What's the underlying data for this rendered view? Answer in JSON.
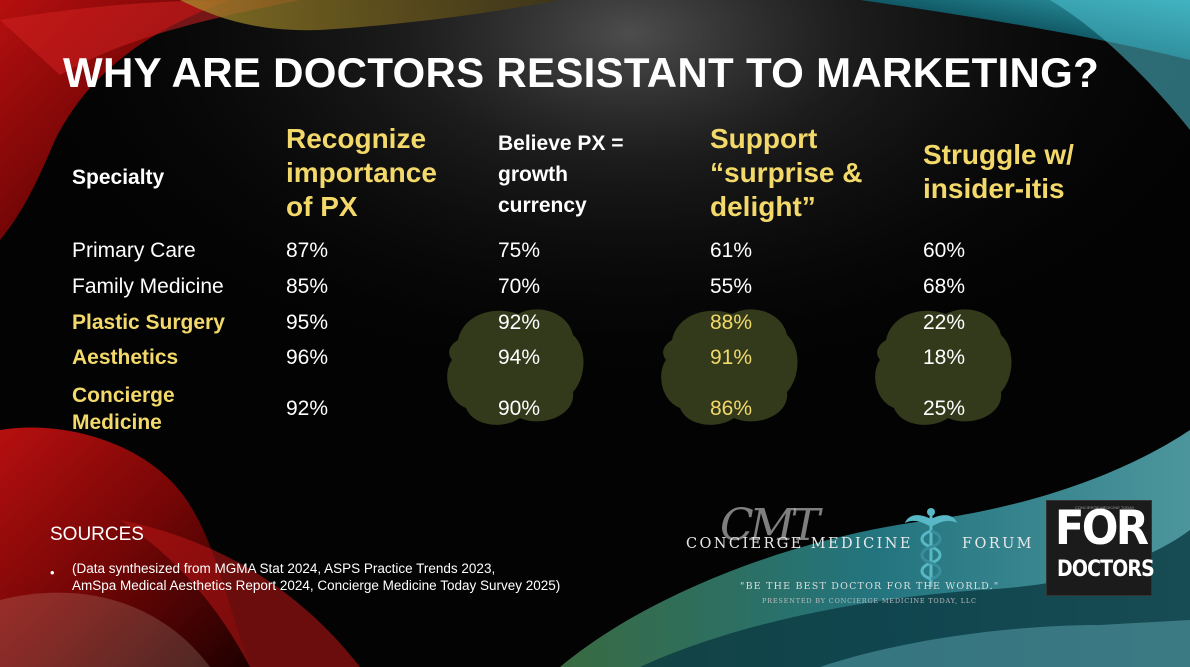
{
  "slide": {
    "title": "WHY ARE DOCTORS RESISTANT TO MARKETING?",
    "colors": {
      "background": "#030303",
      "accent_gold": "#f3d86a",
      "text": "#ffffff",
      "blob_olive": "#3b4420"
    }
  },
  "table": {
    "header_specialty": "Specialty",
    "col1": [
      "Recognize",
      "importance",
      "of PX"
    ],
    "col2": [
      "Believe PX =",
      "growth",
      "currency"
    ],
    "col3": [
      "Support",
      "“surprise &",
      "delight”"
    ],
    "col4": [
      "Struggle w/",
      "insider-itis"
    ],
    "rows": [
      {
        "specialty": [
          "Primary Care"
        ],
        "recognize": "87%",
        "believe": "75%",
        "support": "61%",
        "struggle": "60%"
      },
      {
        "specialty": [
          "Family Medicine"
        ],
        "recognize": "85%",
        "believe": "70%",
        "support": "55%",
        "struggle": "68%"
      },
      {
        "specialty": [
          "Plastic Surgery"
        ],
        "recognize": "95%",
        "believe": "92%",
        "support": "88%",
        "struggle": "22%"
      },
      {
        "specialty": [
          "Aesthetics"
        ],
        "recognize": "96%",
        "believe": "94%",
        "support": "91%",
        "struggle": "18%"
      },
      {
        "specialty": [
          "Concierge",
          "Medicine"
        ],
        "recognize": "92%",
        "believe": "90%",
        "support": "86%",
        "struggle": "25%"
      }
    ]
  },
  "sources": {
    "title": "SOURCES",
    "bullet": "•",
    "lines": [
      "(Data synthesized from MGMA Stat 2024, ASPS Practice Trends 2023,",
      "AmSpa Medical Aesthetics Report 2024, Concierge Medicine Today Survey 2025)"
    ]
  },
  "logos": {
    "forum_monogram": "CMT",
    "forum_name": "CONCIERGE MEDICINE",
    "forum_word": "FORUM",
    "forum_tagline": "\"BE THE BEST DOCTOR FOR THE WORLD.\"",
    "forum_presented": "PRESENTED BY CONCIERGE MEDICINE TODAY, LLC",
    "fordoctors_for": "FOR",
    "fordoctors_doctors": "DOCTORS",
    "fordoctors_small": "CONCIERGE MEDICINE TODAY"
  }
}
